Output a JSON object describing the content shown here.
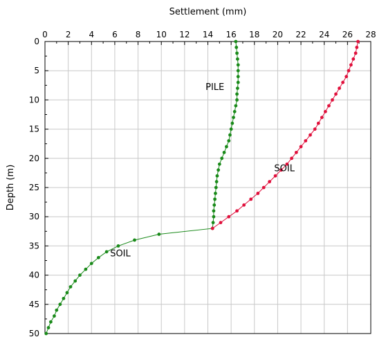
{
  "chart_data": {
    "type": "scatter",
    "title": "",
    "xlabel": "Settlement (mm)",
    "ylabel": "Depth (m)",
    "xlim": [
      0,
      28
    ],
    "ylim": [
      0,
      50
    ],
    "y_inverted": true,
    "x_axis_position": "top",
    "grid": true,
    "x_ticks": [
      0,
      2,
      4,
      6,
      8,
      10,
      12,
      14,
      16,
      18,
      20,
      22,
      24,
      26,
      28
    ],
    "y_ticks": [
      0,
      5,
      10,
      15,
      20,
      25,
      30,
      35,
      40,
      45,
      50
    ],
    "series": [
      {
        "color": "#1a8a1a",
        "points": [
          [
            16.4,
            0
          ],
          [
            16.45,
            1
          ],
          [
            16.5,
            2
          ],
          [
            16.55,
            3
          ],
          [
            16.6,
            4
          ],
          [
            16.6,
            5
          ],
          [
            16.6,
            6
          ],
          [
            16.6,
            7
          ],
          [
            16.55,
            8
          ],
          [
            16.5,
            9
          ],
          [
            16.5,
            10
          ],
          [
            16.4,
            11
          ],
          [
            16.3,
            12
          ],
          [
            16.2,
            13
          ],
          [
            16.1,
            14
          ],
          [
            16.0,
            15
          ],
          [
            15.9,
            16
          ],
          [
            15.8,
            17
          ],
          [
            15.6,
            18
          ],
          [
            15.4,
            19
          ],
          [
            15.2,
            20
          ],
          [
            15.0,
            21
          ],
          [
            14.9,
            22
          ],
          [
            14.8,
            23
          ],
          [
            14.75,
            24
          ],
          [
            14.7,
            25
          ],
          [
            14.65,
            26
          ],
          [
            14.6,
            27
          ],
          [
            14.55,
            28
          ],
          [
            14.5,
            29
          ],
          [
            14.5,
            30
          ],
          [
            14.45,
            31
          ],
          [
            14.4,
            32
          ],
          [
            9.8,
            33
          ],
          [
            7.7,
            34
          ],
          [
            6.3,
            35
          ],
          [
            5.3,
            36
          ],
          [
            4.6,
            37
          ],
          [
            4.0,
            38
          ],
          [
            3.5,
            39
          ],
          [
            3.0,
            40
          ],
          [
            2.6,
            41
          ],
          [
            2.2,
            42
          ],
          [
            1.9,
            43
          ],
          [
            1.6,
            44
          ],
          [
            1.3,
            45
          ],
          [
            1.0,
            46
          ],
          [
            0.8,
            47
          ],
          [
            0.5,
            48
          ],
          [
            0.3,
            49
          ],
          [
            0.1,
            50
          ]
        ]
      },
      {
        "color": "#e0103c",
        "points": [
          [
            26.9,
            0
          ],
          [
            26.8,
            1
          ],
          [
            26.7,
            2
          ],
          [
            26.5,
            3
          ],
          [
            26.3,
            4
          ],
          [
            26.1,
            5
          ],
          [
            25.9,
            6
          ],
          [
            25.6,
            7
          ],
          [
            25.3,
            8
          ],
          [
            25.0,
            9
          ],
          [
            24.7,
            10
          ],
          [
            24.4,
            11
          ],
          [
            24.1,
            12
          ],
          [
            23.8,
            13
          ],
          [
            23.5,
            14
          ],
          [
            23.2,
            15
          ],
          [
            22.8,
            16
          ],
          [
            22.4,
            17
          ],
          [
            22.0,
            18
          ],
          [
            21.6,
            19
          ],
          [
            21.2,
            20
          ],
          [
            20.8,
            21
          ],
          [
            20.3,
            22
          ],
          [
            19.8,
            23
          ],
          [
            19.3,
            24
          ],
          [
            18.8,
            25
          ],
          [
            18.3,
            26
          ],
          [
            17.7,
            27
          ],
          [
            17.1,
            28
          ],
          [
            16.5,
            29
          ],
          [
            15.8,
            30
          ],
          [
            15.1,
            31
          ],
          [
            14.4,
            32
          ]
        ]
      }
    ],
    "annotations": [
      {
        "text": "PILE",
        "x": 13.8,
        "y": 8.3
      },
      {
        "text": "SOIL",
        "x": 19.7,
        "y": 22.2
      },
      {
        "text": "SOIL",
        "x": 5.6,
        "y": 36.8
      }
    ]
  }
}
